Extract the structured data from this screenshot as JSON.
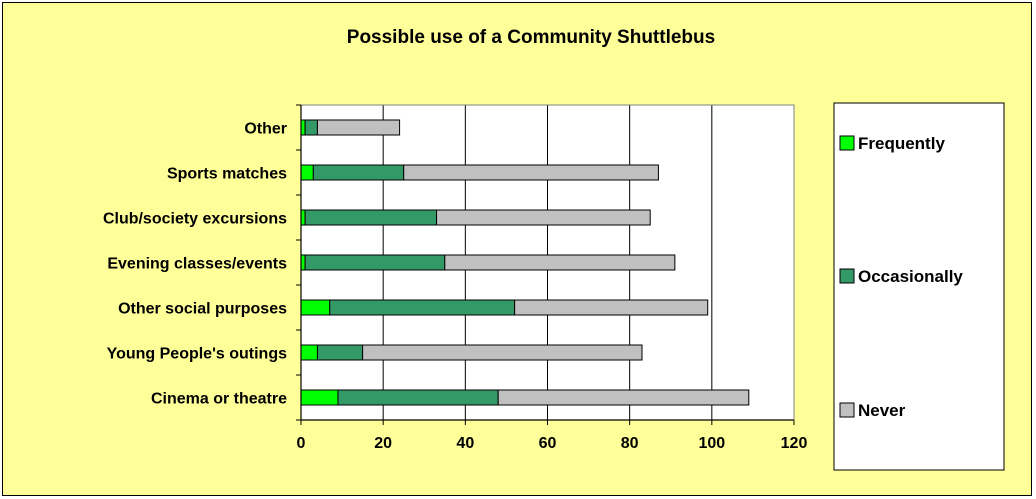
{
  "chart_data": {
    "type": "bar",
    "orientation": "horizontal",
    "stacked": true,
    "title": "Possible use of a Community Shuttlebus",
    "xlabel": "",
    "ylabel": "",
    "xlim": [
      0,
      120
    ],
    "xticks": [
      0,
      20,
      40,
      60,
      80,
      100,
      120
    ],
    "grid": "vertical",
    "legend_position": "right",
    "categories": [
      "Cinema or theatre",
      "Young People's outings",
      "Other social purposes",
      "Evening classes/events",
      "Club/society excursions",
      "Sports matches",
      "Other"
    ],
    "series": [
      {
        "name": "Frequently",
        "color": "#00ff00",
        "values": [
          9,
          4,
          7,
          1,
          1,
          3,
          1
        ]
      },
      {
        "name": "Occasionally",
        "color": "#339966",
        "values": [
          39,
          11,
          45,
          34,
          32,
          22,
          3
        ]
      },
      {
        "name": "Never",
        "color": "#c0c0c0",
        "values": [
          61,
          68,
          47,
          56,
          52,
          62,
          20
        ]
      }
    ],
    "colors": {
      "background": "#ffff99",
      "plot_background": "#ffffff",
      "legend_background": "#ffffff"
    }
  }
}
